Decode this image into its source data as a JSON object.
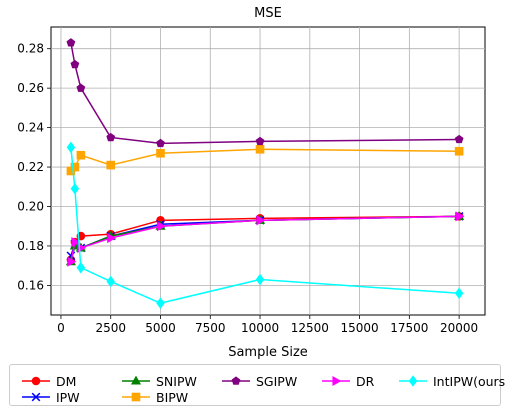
{
  "chart_data": {
    "type": "line",
    "title": "MSE",
    "xlabel": "Sample Size",
    "ylabel": "",
    "xlim": [
      -500,
      21300
    ],
    "ylim": [
      0.145,
      0.291
    ],
    "xticks": [
      0,
      2500,
      5000,
      7500,
      10000,
      12500,
      15000,
      17500,
      20000
    ],
    "yticks": [
      0.16,
      0.18,
      0.2,
      0.22,
      0.24,
      0.26,
      0.28
    ],
    "grid": true,
    "legend_position": "bottom",
    "series": [
      {
        "name": "DM",
        "color": "#ff0000",
        "marker": "circle",
        "x": [
          500,
          700,
          1000,
          2500,
          5000,
          10000,
          20000
        ],
        "y": [
          0.173,
          0.182,
          0.185,
          0.186,
          0.193,
          0.194,
          0.195
        ]
      },
      {
        "name": "IPW",
        "color": "#0000ff",
        "marker": "x",
        "x": [
          500,
          700,
          1000,
          2500,
          5000,
          10000,
          20000
        ],
        "y": [
          0.175,
          0.181,
          0.179,
          0.185,
          0.191,
          0.193,
          0.195
        ]
      },
      {
        "name": "SNIPW",
        "color": "#008000",
        "marker": "triangle-up",
        "x": [
          500,
          700,
          1000,
          2500,
          5000,
          10000,
          20000
        ],
        "y": [
          0.172,
          0.18,
          0.179,
          0.185,
          0.19,
          0.193,
          0.195
        ]
      },
      {
        "name": "BIPW",
        "color": "#ffa500",
        "marker": "square",
        "x": [
          500,
          700,
          1000,
          2500,
          5000,
          10000,
          20000
        ],
        "y": [
          0.218,
          0.22,
          0.226,
          0.221,
          0.227,
          0.229,
          0.228
        ]
      },
      {
        "name": "SGIPW",
        "color": "#800080",
        "marker": "pentagon",
        "x": [
          500,
          700,
          1000,
          2500,
          5000,
          10000,
          20000
        ],
        "y": [
          0.283,
          0.272,
          0.26,
          0.235,
          0.232,
          0.233,
          0.234
        ]
      },
      {
        "name": "DR",
        "color": "#ff00ff",
        "marker": "triangle-right",
        "x": [
          500,
          700,
          1000,
          2500,
          5000,
          10000,
          20000
        ],
        "y": [
          0.172,
          0.182,
          0.179,
          0.184,
          0.19,
          0.193,
          0.195
        ]
      },
      {
        "name": "IntIPW(ours)",
        "color": "#00ffff",
        "marker": "diamond",
        "x": [
          500,
          700,
          1000,
          2500,
          5000,
          10000,
          20000
        ],
        "y": [
          0.23,
          0.209,
          0.169,
          0.162,
          0.151,
          0.163,
          0.156
        ]
      }
    ]
  }
}
